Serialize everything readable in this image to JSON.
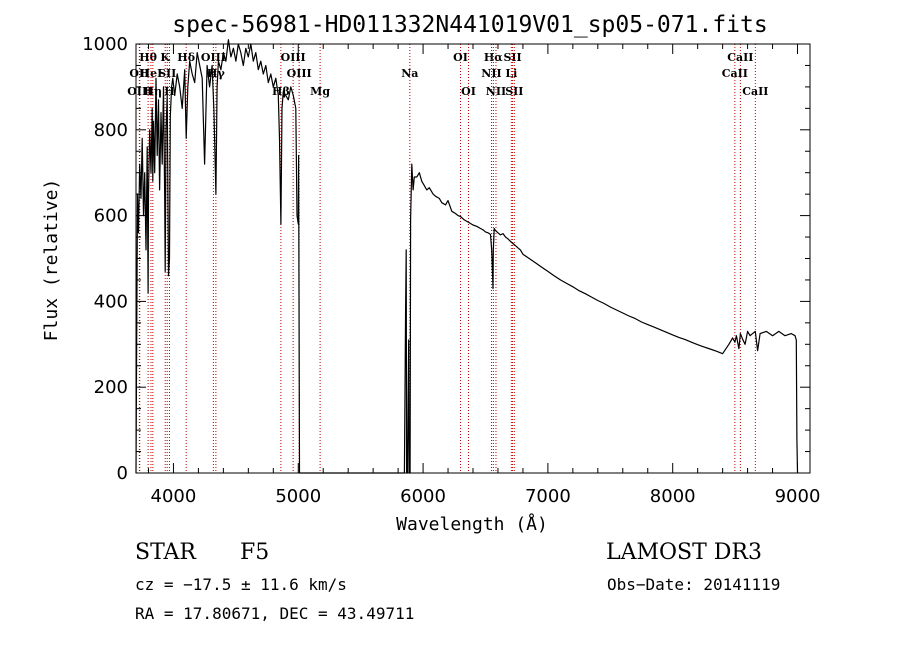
{
  "chart_data": {
    "type": "line",
    "title": "spec-56981-HD011332N441019V01_sp05-071.fits",
    "xlabel": "Wavelength (Å)",
    "ylabel": "Flux (relative)",
    "xlim": [
      3700,
      9100
    ],
    "ylim": [
      0,
      1000
    ],
    "xticks": [
      4000,
      5000,
      6000,
      7000,
      8000,
      9000
    ],
    "yticks": [
      0,
      200,
      400,
      600,
      800,
      1000
    ],
    "x_minor_step": 200,
    "y_minor_step": 50,
    "series": [
      {
        "name": "flux",
        "x": [
          3700,
          3705,
          3712,
          3720,
          3730,
          3740,
          3750,
          3760,
          3770,
          3780,
          3790,
          3797,
          3800,
          3810,
          3820,
          3830,
          3835,
          3840,
          3850,
          3860,
          3870,
          3880,
          3889,
          3900,
          3910,
          3920,
          3930,
          3934,
          3940,
          3950,
          3960,
          3968,
          3975,
          3985,
          3995,
          4010,
          4030,
          4050,
          4070,
          4090,
          4102,
          4115,
          4130,
          4150,
          4170,
          4190,
          4210,
          4230,
          4250,
          4270,
          4290,
          4310,
          4325,
          4340,
          4350,
          4360,
          4380,
          4400,
          4420,
          4440,
          4460,
          4480,
          4500,
          4520,
          4540,
          4560,
          4580,
          4600,
          4620,
          4640,
          4660,
          4680,
          4700,
          4720,
          4740,
          4760,
          4780,
          4800,
          4820,
          4840,
          4850,
          4861,
          4870,
          4880,
          4900,
          4920,
          4940,
          4960,
          4980,
          4990,
          5000,
          5003,
          5010,
          5800,
          5850,
          5860,
          5865,
          5868,
          5870,
          5873,
          5875,
          5880,
          5885,
          5888,
          5890,
          5893,
          5896,
          5900,
          5910,
          5920,
          5930,
          5950,
          5970,
          5990,
          6010,
          6030,
          6050,
          6080,
          6100,
          6130,
          6150,
          6180,
          6200,
          6230,
          6260,
          6280,
          6300,
          6330,
          6360,
          6400,
          6430,
          6460,
          6480,
          6500,
          6520,
          6540,
          6550,
          6560,
          6563,
          6566,
          6570,
          6580,
          6600,
          6620,
          6640,
          6660,
          6680,
          6700,
          6720,
          6740,
          6760,
          6780,
          6800,
          6850,
          6900,
          6950,
          7000,
          7050,
          7100,
          7150,
          7200,
          7250,
          7300,
          7350,
          7400,
          7450,
          7500,
          7550,
          7600,
          7650,
          7700,
          7750,
          7800,
          7850,
          7900,
          7950,
          8000,
          8050,
          8100,
          8150,
          8200,
          8250,
          8300,
          8350,
          8400,
          8450,
          8480,
          8498,
          8510,
          8530,
          8542,
          8560,
          8580,
          8600,
          8620,
          8640,
          8662,
          8680,
          8700,
          8750,
          8800,
          8850,
          8900,
          8950,
          8980,
          8990,
          8995,
          9000
        ],
        "y": [
          0,
          270,
          650,
          560,
          720,
          640,
          780,
          600,
          700,
          520,
          760,
          420,
          650,
          800,
          700,
          850,
          680,
          820,
          700,
          920,
          740,
          870,
          660,
          840,
          720,
          900,
          640,
          470,
          800,
          880,
          460,
          500,
          830,
          900,
          920,
          880,
          930,
          900,
          850,
          940,
          780,
          900,
          960,
          930,
          910,
          980,
          950,
          920,
          720,
          950,
          900,
          950,
          840,
          650,
          900,
          960,
          940,
          980,
          960,
          1010,
          970,
          990,
          960,
          1000,
          980,
          950,
          990,
          970,
          1000,
          960,
          980,
          940,
          960,
          930,
          950,
          910,
          930,
          900,
          920,
          880,
          780,
          580,
          850,
          890,
          880,
          870,
          900,
          880,
          850,
          600,
          580,
          740,
          0,
          0,
          0,
          380,
          520,
          0,
          0,
          0,
          0,
          170,
          310,
          0,
          0,
          0,
          0,
          590,
          720,
          660,
          690,
          690,
          700,
          680,
          670,
          660,
          665,
          650,
          645,
          640,
          630,
          625,
          635,
          610,
          605,
          600,
          598,
          590,
          585,
          578,
          575,
          570,
          567,
          562,
          560,
          556,
          520,
          430,
          520,
          540,
          570,
          565,
          560,
          555,
          558,
          550,
          546,
          540,
          535,
          530,
          525,
          520,
          510,
          500,
          490,
          480,
          470,
          460,
          450,
          442,
          434,
          425,
          418,
          410,
          402,
          395,
          387,
          380,
          373,
          366,
          360,
          352,
          346,
          340,
          334,
          328,
          322,
          316,
          311,
          305,
          299,
          294,
          289,
          284,
          278,
          300,
          315,
          305,
          320,
          290,
          325,
          312,
          300,
          330,
          320,
          325,
          330,
          285,
          325,
          330,
          320,
          330,
          320,
          325,
          320,
          310,
          80,
          0
        ]
      }
    ],
    "line_markers": [
      {
        "label": "Hθ",
        "x": 3797,
        "row": 1
      },
      {
        "label": "OII",
        "x": 3727,
        "row": 2
      },
      {
        "label": "OIII",
        "x": 3730,
        "row": 3
      },
      {
        "label": "HeI",
        "x": 3820,
        "row": 2
      },
      {
        "label": "Hη",
        "x": 3835,
        "row": 3
      },
      {
        "label": "K",
        "x": 3934,
        "row": 1
      },
      {
        "label": "SII",
        "x": 3950,
        "row": 2
      },
      {
        "label": "H",
        "x": 3968,
        "row": 3
      },
      {
        "label": "Hδ",
        "x": 4102,
        "row": 1
      },
      {
        "label": "OIII",
        "x": 4320,
        "row": 1
      },
      {
        "label": "Hγ",
        "x": 4340,
        "row": 2
      },
      {
        "label": "Hβ",
        "x": 4861,
        "row": 3
      },
      {
        "label": "OIII",
        "x": 4959,
        "row": 1
      },
      {
        "label": "OIII",
        "x": 5007,
        "row": 2
      },
      {
        "label": "Mg",
        "x": 5175,
        "row": 3
      },
      {
        "label": "Na",
        "x": 5894,
        "row": 2
      },
      {
        "label": "OI",
        "x": 6300,
        "row": 1
      },
      {
        "label": "OI",
        "x": 6364,
        "row": 3
      },
      {
        "label": "Hα",
        "x": 6563,
        "row": 1
      },
      {
        "label": "NII",
        "x": 6548,
        "row": 2
      },
      {
        "label": "NII",
        "x": 6584,
        "row": 3
      },
      {
        "label": "SII",
        "x": 6717,
        "row": 1
      },
      {
        "label": "Li",
        "x": 6707,
        "row": 2
      },
      {
        "label": "SII",
        "x": 6731,
        "row": 3
      },
      {
        "label": "CaII",
        "x": 8542,
        "row": 1
      },
      {
        "label": "CaII",
        "x": 8498,
        "row": 2
      },
      {
        "label": "CaII",
        "x": 8662,
        "row": 3
      }
    ]
  },
  "info": {
    "object_type": "STAR",
    "subclass": "F5",
    "survey": "LAMOST DR3",
    "redshift": "cz = −17.5 ± 11.6 km/s",
    "obs_date": "Obs−Date: 20141119",
    "coords": "RA =  17.80671, DEC =  43.49711"
  },
  "colors": {
    "spectrum": "#000000",
    "marker_line": "#c00000",
    "axis": "#000000",
    "background": "#ffffff"
  }
}
